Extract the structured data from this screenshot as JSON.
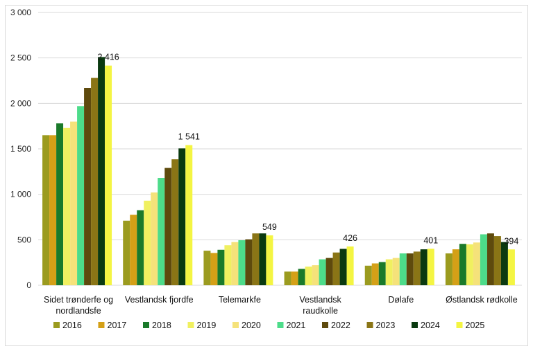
{
  "chart_data": {
    "type": "bar",
    "title": "",
    "xlabel": "",
    "ylabel": "",
    "ylim": [
      0,
      3000
    ],
    "yticks": [
      0,
      500,
      1000,
      1500,
      2000,
      2500,
      3000
    ],
    "ytick_labels": [
      "0",
      "500",
      "1 000",
      "1 500",
      "2 000",
      "2 500",
      "3 000"
    ],
    "grid": true,
    "legend_position": "bottom",
    "categories": [
      [
        "Sidet trønderfe og",
        "nordlandsfe"
      ],
      [
        "Vestlandsk fjordfe"
      ],
      [
        "Telemarkfe"
      ],
      [
        "Vestlandsk",
        "raudkolle"
      ],
      [
        "Dølafe"
      ],
      [
        "Østlandsk rødkolle"
      ]
    ],
    "series": [
      {
        "name": "2016",
        "color": "#9b9b1f",
        "values": [
          1650,
          710,
          380,
          150,
          215,
          350
        ]
      },
      {
        "name": "2017",
        "color": "#d4a017",
        "values": [
          1650,
          775,
          355,
          150,
          240,
          395
        ]
      },
      {
        "name": "2018",
        "color": "#1a7a2a",
        "values": [
          1780,
          825,
          390,
          180,
          255,
          455
        ]
      },
      {
        "name": "2019",
        "color": "#f0f060",
        "values": [
          1730,
          930,
          440,
          205,
          285,
          450
        ]
      },
      {
        "name": "2020",
        "color": "#f5e27a",
        "values": [
          1800,
          1020,
          475,
          220,
          300,
          470
        ]
      },
      {
        "name": "2021",
        "color": "#4ddc8a",
        "values": [
          1970,
          1180,
          495,
          285,
          350,
          560
        ]
      },
      {
        "name": "2022",
        "color": "#5e4a0d",
        "values": [
          2170,
          1290,
          505,
          300,
          350,
          570
        ]
      },
      {
        "name": "2023",
        "color": "#8a7516",
        "values": [
          2280,
          1385,
          570,
          360,
          370,
          540
        ]
      },
      {
        "name": "2024",
        "color": "#0a3a10",
        "values": [
          2510,
          1505,
          570,
          400,
          395,
          475
        ]
      },
      {
        "name": "2025",
        "color": "#f4f542",
        "values": [
          2416,
          1541,
          549,
          426,
          401,
          394
        ]
      }
    ],
    "data_labels": [
      "2 416",
      "1 541",
      "549",
      "426",
      "401",
      "394"
    ]
  }
}
